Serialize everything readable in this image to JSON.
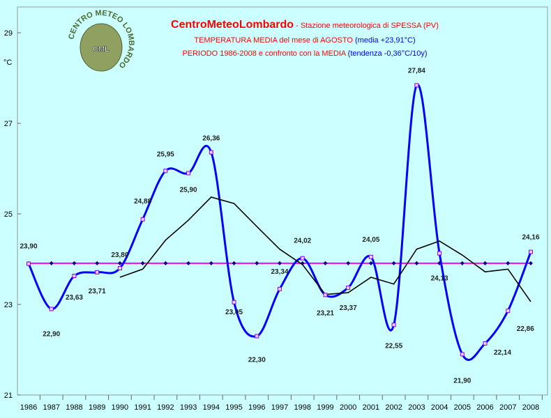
{
  "chart_data": {
    "type": "line",
    "title": "CentroMeteoLombardo",
    "title_rest": " - Stazione meteorologica di SPESSA (PV)",
    "subtitle": [
      "TEMPERATURA MEDIA del mese di AGOSTO",
      " (media +23,91°C)"
    ],
    "subtitle2": [
      "PERIODO 1986-2008 e confronto con la MEDIA",
      " (tendenza -0,36°C/10y)"
    ],
    "logo": {
      "ring": "CENTRO METEO LOMBARDO",
      "initials": "CML"
    },
    "y_label": "°C",
    "categories": [
      "1986",
      "1987",
      "1988",
      "1989",
      "1990",
      "1991",
      "1992",
      "1993",
      "1994",
      "1995",
      "1996",
      "1997",
      "1998",
      "1999",
      "2000",
      "2001",
      "2002",
      "2003",
      "2004",
      "2005",
      "2006",
      "2007",
      "2008"
    ],
    "series": [
      {
        "color": "#0000ff",
        "values": [
          23.9,
          22.9,
          23.63,
          23.71,
          23.8,
          24.88,
          25.95,
          25.9,
          26.36,
          23.05,
          22.3,
          23.34,
          24.02,
          23.21,
          23.37,
          24.05,
          22.55,
          27.84,
          24.13,
          21.9,
          22.14,
          22.86,
          24.16
        ],
        "value_labels": [
          "23,90",
          "22,90",
          "23,63",
          "23,71",
          "23,80",
          "24,88",
          "25,95",
          "25,90",
          "26,36",
          "23,05",
          "22,30",
          "23,34",
          "24,02",
          "23,21",
          "23,37",
          "24,05",
          "22,55",
          "27,84",
          "24,13",
          "21,90",
          "22,14",
          "22,86",
          "24,16"
        ]
      },
      {
        "color": "#000000",
        "values": [
          null,
          null,
          null,
          null,
          23.6,
          23.78,
          24.42,
          24.86,
          25.37,
          25.23,
          24.72,
          24.22,
          23.88,
          23.22,
          23.26,
          23.6,
          23.45,
          24.22,
          24.4,
          24.09,
          23.72,
          23.78,
          23.06
        ]
      }
    ],
    "mean_line": {
      "value": 23.91,
      "color": "#ff00ff"
    },
    "ylim": [
      21,
      29
    ],
    "yticks": [
      21,
      23,
      25,
      27,
      29
    ]
  }
}
